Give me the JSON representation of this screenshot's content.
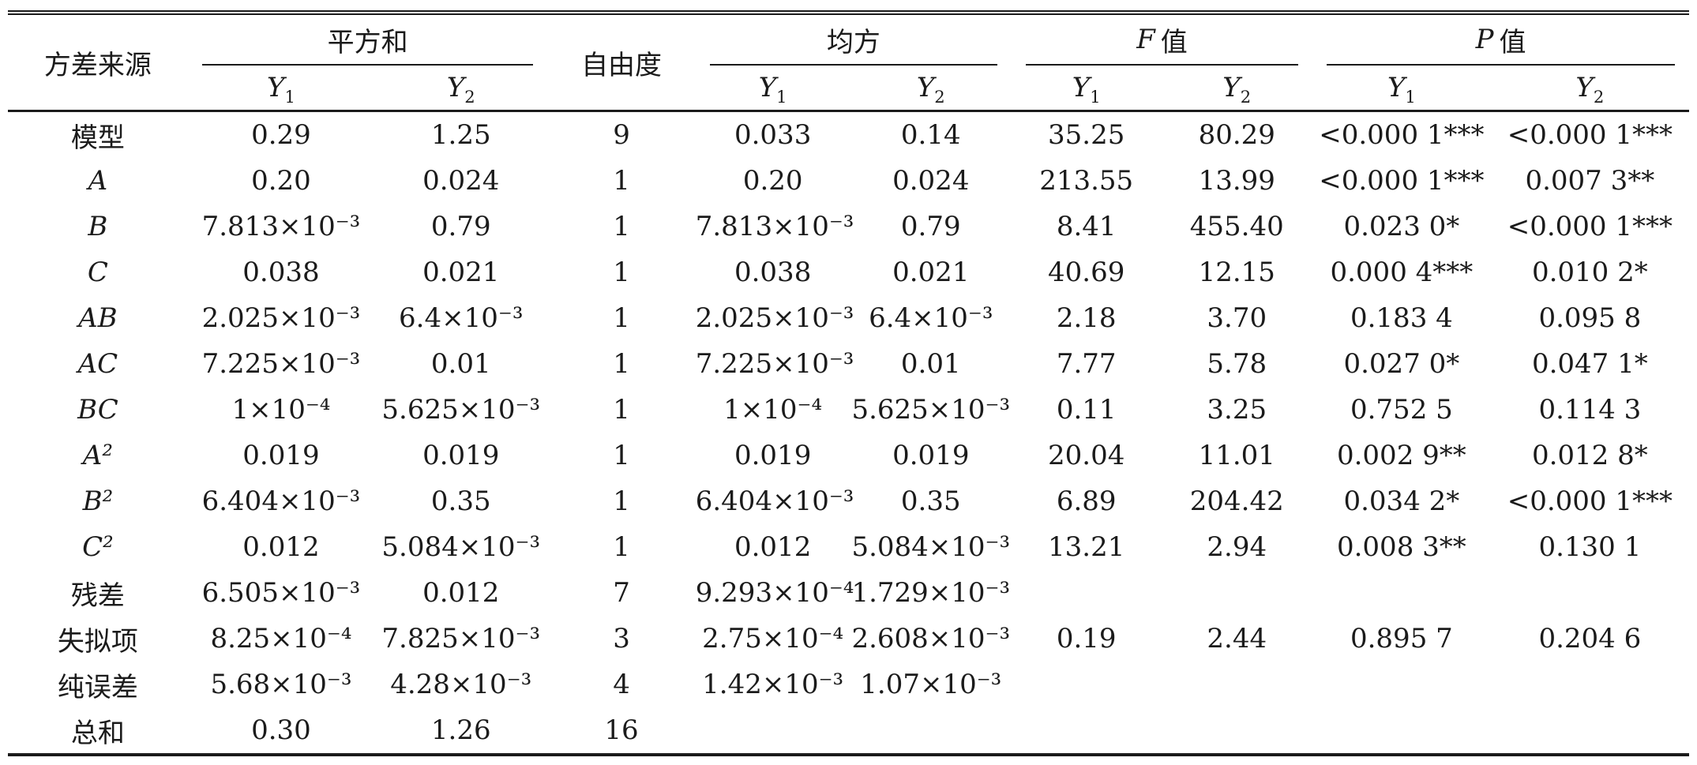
{
  "page": {
    "background": "#ffffff",
    "text_color": "#1b1b1b",
    "rule_color": "#1b1b1b"
  },
  "table": {
    "header": {
      "source": "方差来源",
      "df": "自由度",
      "groups": [
        {
          "italic_part": "",
          "cjk_part": "平方和"
        },
        {
          "italic_part": "",
          "cjk_part": "均方"
        },
        {
          "italic_part": "F",
          "cjk_part": "值"
        },
        {
          "italic_part": "P",
          "cjk_part": "值"
        }
      ],
      "sub_base": "Y",
      "sub_indices": [
        "1",
        "2"
      ]
    },
    "rows": [
      {
        "label": "模型",
        "italic": false,
        "cells": [
          "0.29",
          "1.25",
          "9",
          "0.033",
          "0.14",
          "35.25",
          "80.29",
          "<0.000 1***",
          "<0.000 1***"
        ]
      },
      {
        "label": "A",
        "italic": true,
        "cells": [
          "0.20",
          "0.024",
          "1",
          "0.20",
          "0.024",
          "213.55",
          "13.99",
          "<0.000 1***",
          "0.007 3**"
        ]
      },
      {
        "label": "B",
        "italic": true,
        "cells": [
          "7.813×10⁻³",
          "0.79",
          "1",
          "7.813×10⁻³",
          "0.79",
          "8.41",
          "455.40",
          "0.023 0*",
          "<0.000 1***"
        ]
      },
      {
        "label": "C",
        "italic": true,
        "cells": [
          "0.038",
          "0.021",
          "1",
          "0.038",
          "0.021",
          "40.69",
          "12.15",
          "0.000 4***",
          "0.010 2*"
        ]
      },
      {
        "label": "AB",
        "italic": true,
        "cells": [
          "2.025×10⁻³",
          "6.4×10⁻³",
          "1",
          "2.025×10⁻³",
          "6.4×10⁻³",
          "2.18",
          "3.70",
          "0.183 4",
          "0.095 8"
        ]
      },
      {
        "label": "AC",
        "italic": true,
        "cells": [
          "7.225×10⁻³",
          "0.01",
          "1",
          "7.225×10⁻³",
          "0.01",
          "7.77",
          "5.78",
          "0.027 0*",
          "0.047 1*"
        ]
      },
      {
        "label": "BC",
        "italic": true,
        "cells": [
          "1×10⁻⁴",
          "5.625×10⁻³",
          "1",
          "1×10⁻⁴",
          "5.625×10⁻³",
          "0.11",
          "3.25",
          "0.752 5",
          "0.114 3"
        ]
      },
      {
        "label": "A²",
        "italic": true,
        "cells": [
          "0.019",
          "0.019",
          "1",
          "0.019",
          "0.019",
          "20.04",
          "11.01",
          "0.002 9**",
          "0.012 8*"
        ]
      },
      {
        "label": "B²",
        "italic": true,
        "cells": [
          "6.404×10⁻³",
          "0.35",
          "1",
          "6.404×10⁻³",
          "0.35",
          "6.89",
          "204.42",
          "0.034 2*",
          "<0.000 1***"
        ]
      },
      {
        "label": "C²",
        "italic": true,
        "cells": [
          "0.012",
          "5.084×10⁻³",
          "1",
          "0.012",
          "5.084×10⁻³",
          "13.21",
          "2.94",
          "0.008 3**",
          "0.130 1"
        ]
      },
      {
        "label": "残差",
        "italic": false,
        "cells": [
          "6.505×10⁻³",
          "0.012",
          "7",
          "9.293×10⁻⁴",
          "1.729×10⁻³",
          "",
          "",
          "",
          ""
        ]
      },
      {
        "label": "失拟项",
        "italic": false,
        "cells": [
          "8.25×10⁻⁴",
          "7.825×10⁻³",
          "3",
          "2.75×10⁻⁴",
          "2.608×10⁻³",
          "0.19",
          "2.44",
          "0.895 7",
          "0.204 6"
        ]
      },
      {
        "label": "纯误差",
        "italic": false,
        "cells": [
          "5.68×10⁻³",
          "4.28×10⁻³",
          "4",
          "1.42×10⁻³",
          "1.07×10⁻³",
          "",
          "",
          "",
          ""
        ]
      },
      {
        "label": "总和",
        "italic": false,
        "cells": [
          "0.30",
          "1.26",
          "16",
          "",
          "",
          "",
          "",
          "",
          ""
        ]
      }
    ]
  }
}
